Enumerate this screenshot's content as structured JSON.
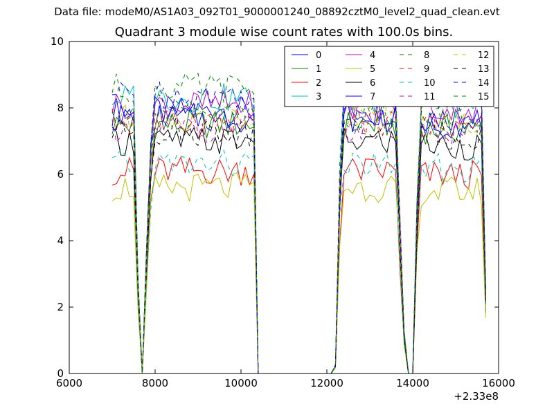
{
  "header": {
    "suptitle": "Data file: modeM0/AS1A03_092T01_9000001240_08892cztM0_level2_quad_clean.evt"
  },
  "chart_data": {
    "type": "line",
    "title": "Quadrant 3 module wise count rates with 100.0s bins.",
    "xlabel": "",
    "ylabel": "",
    "xlim": [
      6000,
      16000
    ],
    "ylim": [
      0,
      10
    ],
    "x_offset_label": "+2.33e8",
    "x_ticks": [
      6000,
      8000,
      10000,
      12000,
      14000,
      16000
    ],
    "y_ticks": [
      0,
      2,
      4,
      6,
      8,
      10
    ],
    "x_tick_labels": [
      "6000",
      "8000",
      "10000",
      "12000",
      "14000",
      "16000"
    ],
    "y_tick_labels": [
      "0",
      "2",
      "4",
      "6",
      "8",
      "10"
    ],
    "legend_position": "top-right",
    "legend_columns": 4,
    "x": [
      7000,
      7100,
      7200,
      7300,
      7400,
      7500,
      7600,
      7700,
      7800,
      7900,
      8000,
      8100,
      8200,
      8300,
      8400,
      8500,
      8600,
      8700,
      8800,
      8900,
      9000,
      9100,
      9200,
      9300,
      9400,
      9500,
      9600,
      9700,
      9800,
      9900,
      10000,
      10100,
      10200,
      10300,
      10400,
      10500,
      10600,
      10700,
      10800,
      10900,
      11000,
      11100,
      11200,
      11300,
      11400,
      11500,
      11600,
      11700,
      11800,
      11900,
      12000,
      12100,
      12200,
      12300,
      12400,
      12500,
      12600,
      12700,
      12800,
      12900,
      13000,
      13100,
      13200,
      13300,
      13400,
      13500,
      13600,
      13700,
      13800,
      13900,
      14000,
      14100,
      14200,
      14300,
      14400,
      14500,
      14600,
      14700,
      14800,
      14900,
      15000,
      15100,
      15200,
      15300,
      15400,
      15500,
      15600,
      15700
    ],
    "series": [
      {
        "name": "0",
        "color": "#0000ff",
        "dash": "solid",
        "level": 7.9
      },
      {
        "name": "1",
        "color": "#008000",
        "dash": "solid",
        "level": 7.5
      },
      {
        "name": "2",
        "color": "#ff0000",
        "dash": "solid",
        "level": 6.1
      },
      {
        "name": "3",
        "color": "#00bfbf",
        "dash": "solid",
        "level": 8.3
      },
      {
        "name": "4",
        "color": "#bf00bf",
        "dash": "solid",
        "level": 8.1
      },
      {
        "name": "5",
        "color": "#bfbf00",
        "dash": "solid",
        "level": 5.6
      },
      {
        "name": "6",
        "color": "#000000",
        "dash": "solid",
        "level": 7.0
      },
      {
        "name": "7",
        "color": "#0000ff",
        "dash": "solid",
        "level": 7.7
      },
      {
        "name": "8",
        "color": "#008000",
        "dash": "dashed",
        "level": 8.6
      },
      {
        "name": "9",
        "color": "#ff0000",
        "dash": "dashed",
        "level": 7.6
      },
      {
        "name": "10",
        "color": "#00bfbf",
        "dash": "dashed",
        "level": 6.3
      },
      {
        "name": "11",
        "color": "#bf00bf",
        "dash": "dashed",
        "level": 7.4
      },
      {
        "name": "12",
        "color": "#bfbf00",
        "dash": "dashed",
        "level": 7.7
      },
      {
        "name": "13",
        "color": "#000000",
        "dash": "dashed",
        "level": 7.3
      },
      {
        "name": "14",
        "color": "#0000ff",
        "dash": "dashed",
        "level": 8.4
      },
      {
        "name": "15",
        "color": "#008000",
        "dash": "dashed",
        "level": 7.8
      }
    ]
  }
}
